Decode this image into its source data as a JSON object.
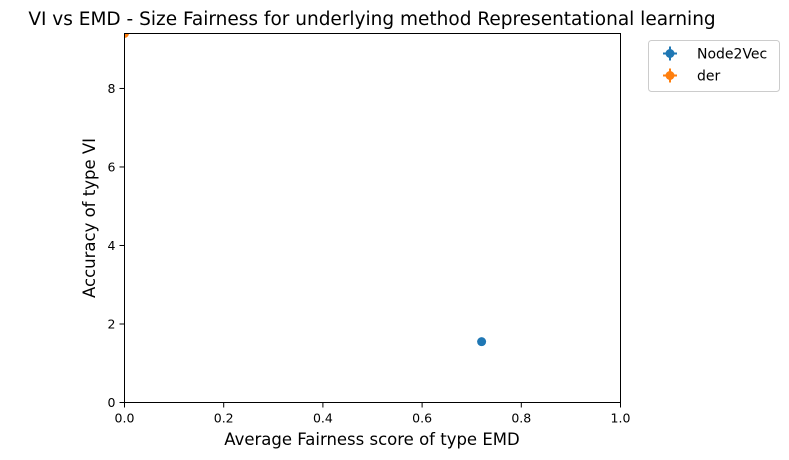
{
  "chart_data": {
    "type": "scatter",
    "title": "VI vs EMD - Size Fairness for underlying method Representational learning",
    "xlabel": "Average Fairness score of type EMD",
    "ylabel": "Accuracy of type VI",
    "xlim": [
      0,
      1.0
    ],
    "ylim": [
      0,
      9.4
    ],
    "xticks": [
      0.0,
      0.2,
      0.4,
      0.6,
      0.8,
      1.0
    ],
    "xtick_labels": [
      "0.0",
      "0.2",
      "0.4",
      "0.6",
      "0.8",
      "1.0"
    ],
    "yticks": [
      0,
      2,
      4,
      6,
      8
    ],
    "ytick_labels": [
      "0",
      "2",
      "4",
      "6",
      "8"
    ],
    "grid": false,
    "legend_position": "outside top-right",
    "series": [
      {
        "name": "Node2Vec",
        "color": "#1f77b4",
        "x": [
          0.72
        ],
        "y": [
          1.55
        ]
      },
      {
        "name": "der",
        "color": "#ff7f0e",
        "x": [
          0.0
        ],
        "y": [
          9.4
        ]
      }
    ]
  }
}
